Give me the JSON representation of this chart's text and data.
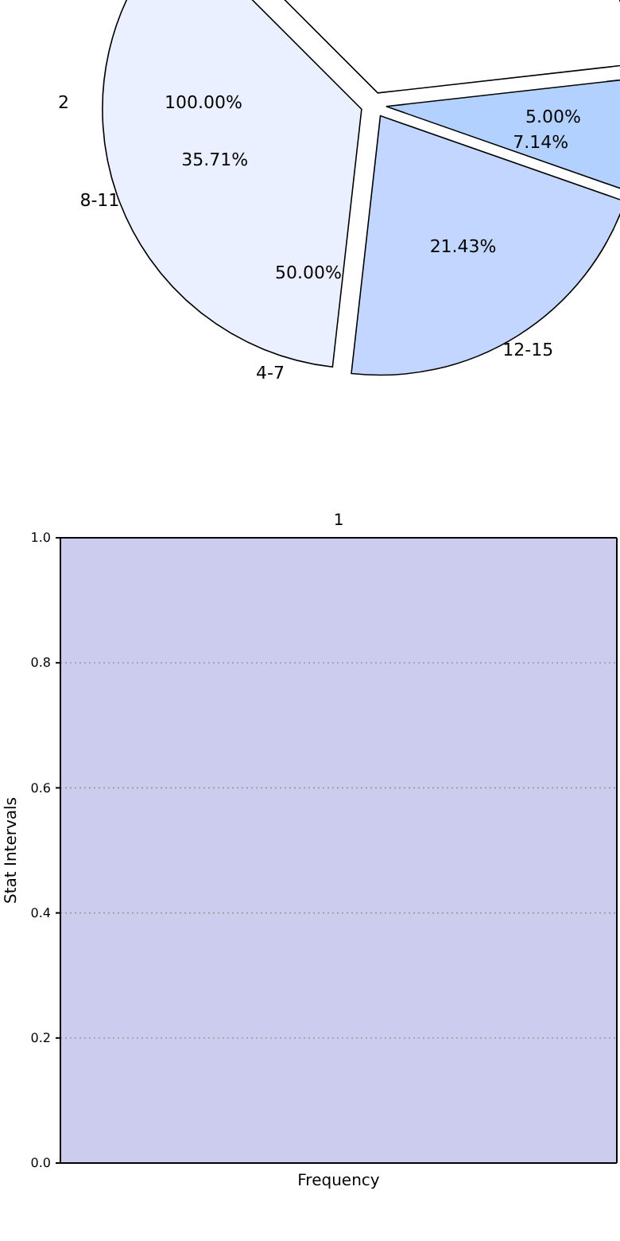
{
  "chart_data": [
    {
      "type": "pie",
      "categories": [
        null,
        null,
        "12-15",
        "8-11"
      ],
      "values": [
        35.71,
        7.14,
        21.43,
        35.71
      ],
      "colors": [
        "#ffffff",
        "#b3d1ff",
        "#c2d6ff",
        "#eaf0ff"
      ],
      "value_labels": [
        null,
        "7.14%",
        "21.43%",
        "35.71%"
      ],
      "annotations": [
        "2",
        "4-7",
        "100.00%",
        "50.00%",
        "5.00%"
      ]
    },
    {
      "type": "bar",
      "title": "1",
      "categories": [
        null
      ],
      "values": [
        null
      ],
      "xlabel": "Frequency",
      "ylabel": "Stat Intervals",
      "ylim": [
        0,
        1
      ],
      "yticks": [
        {
          "value": 0,
          "label": "0.0"
        },
        {
          "value": 0.2,
          "label": "0.2"
        },
        {
          "value": 0.4,
          "label": "0.4"
        },
        {
          "value": 0.6,
          "label": "0.6"
        },
        {
          "value": 0.8,
          "label": "0.8"
        },
        {
          "value": 1,
          "label": "1.0"
        }
      ],
      "grid": "y"
    }
  ]
}
